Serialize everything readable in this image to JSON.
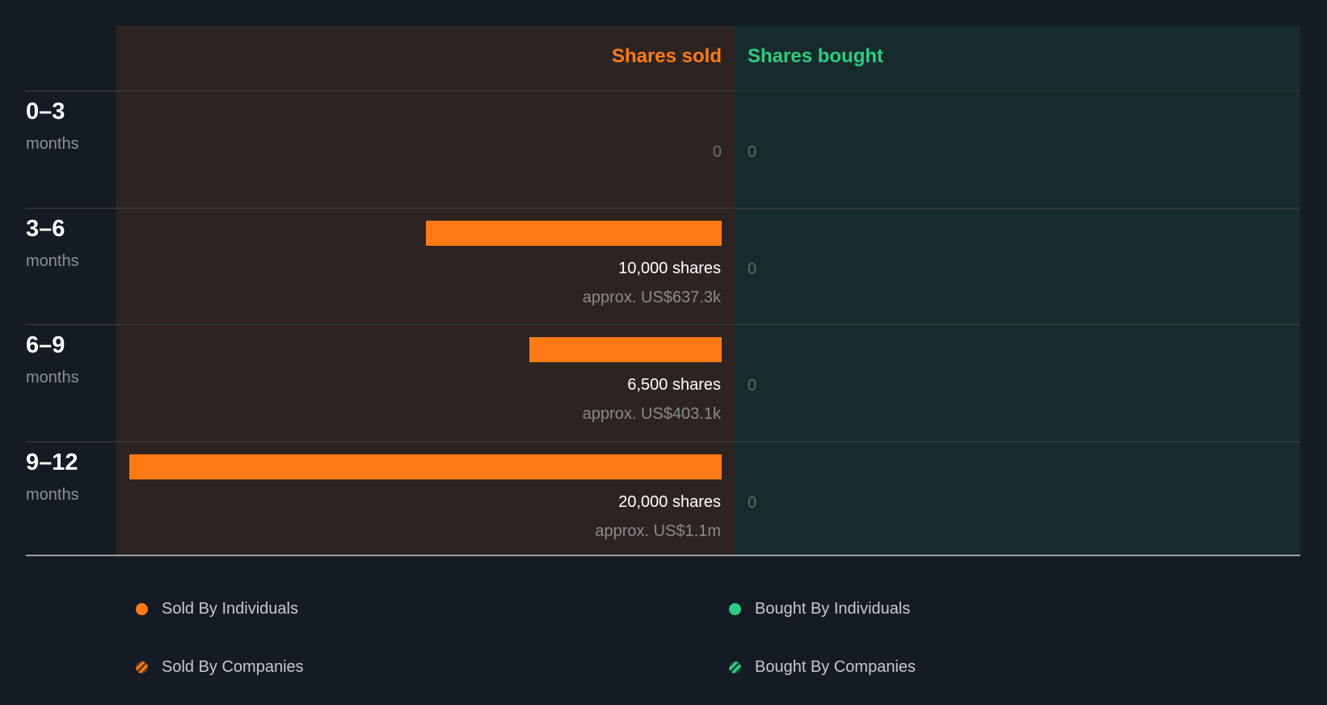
{
  "chart_data": {
    "type": "bar",
    "title": "",
    "headers": {
      "sold": "Shares sold",
      "bought": "Shares bought"
    },
    "categories": [
      {
        "range": "0–3",
        "unit": "months"
      },
      {
        "range": "3–6",
        "unit": "months"
      },
      {
        "range": "6–9",
        "unit": "months"
      },
      {
        "range": "9–12",
        "unit": "months"
      }
    ],
    "series": [
      {
        "name": "Shares sold",
        "values": [
          0,
          10000,
          6500,
          20000
        ],
        "labels": [
          "0",
          "10,000 shares",
          "6,500 shares",
          "20,000 shares"
        ],
        "approx": [
          "",
          "approx. US$637.3k",
          "approx. US$403.1k",
          "approx. US$1.1m"
        ]
      },
      {
        "name": "Shares bought",
        "values": [
          0,
          0,
          0,
          0
        ],
        "labels": [
          "0",
          "0",
          "0",
          "0"
        ]
      }
    ],
    "xlim": [
      0,
      20000
    ],
    "legend": [
      {
        "label": "Sold By Individuals",
        "color": "#ff7a15"
      },
      {
        "label": "Bought By Individuals",
        "color": "#2dcc82"
      },
      {
        "label": "Sold By Companies",
        "color": "#ff7a15"
      },
      {
        "label": "Bought By Companies",
        "color": "#2dcc82"
      }
    ],
    "legend_position": "bottom"
  }
}
